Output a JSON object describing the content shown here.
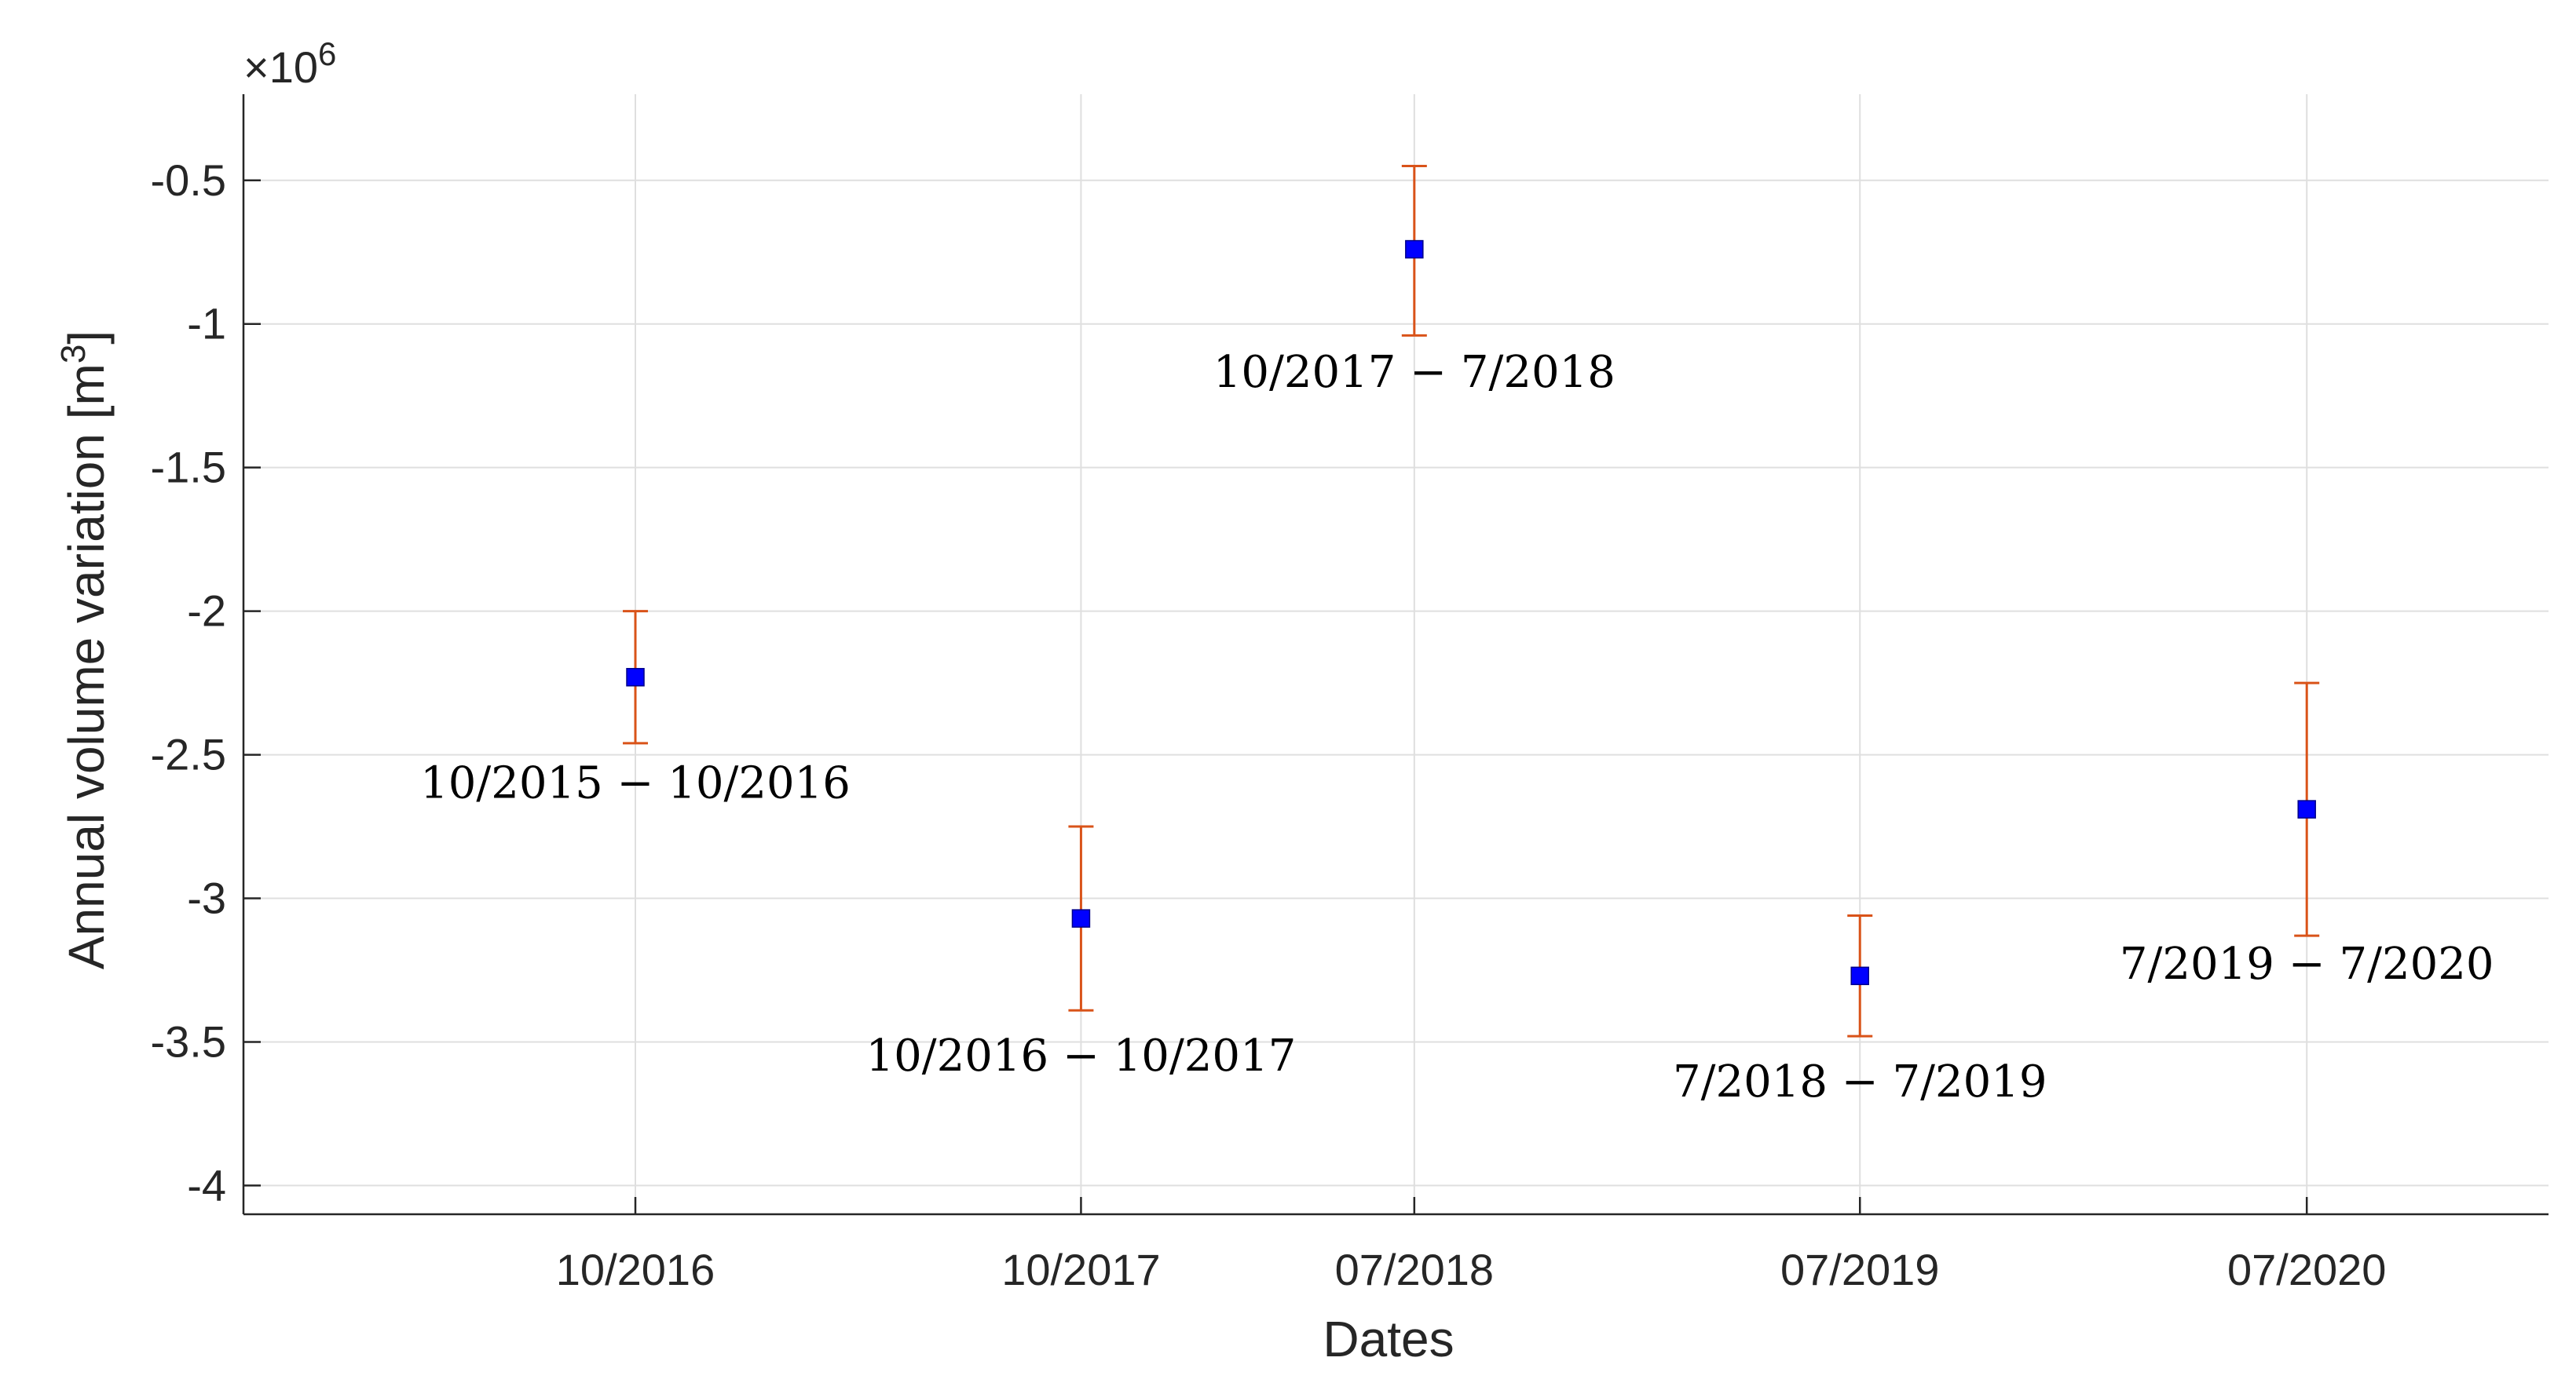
{
  "chart_data": {
    "type": "scatter",
    "xlabel": "Dates",
    "ylabel": "Annual volume variation [m",
    "ylabel_sup": "3",
    "ylabel_close": "]",
    "y_multiplier_prefix": "×10",
    "y_multiplier_exp": "6",
    "ylim": [
      -4.1,
      -0.2
    ],
    "yticks": [
      -4,
      -3.5,
      -3,
      -2.5,
      -2,
      -1.5,
      -1,
      -0.5
    ],
    "ytick_labels": [
      "-4",
      "-3.5",
      "-3",
      "-2.5",
      "-2",
      "-1.5",
      "-1",
      "-0.5"
    ],
    "xlim": [
      "2015-11-15",
      "2021-01-15"
    ],
    "xticks": [
      "2016-10-01",
      "2017-10-01",
      "2018-07-01",
      "2019-07-01",
      "2020-07-01"
    ],
    "xtick_labels": [
      "10/2016",
      "10/2017",
      "07/2018",
      "07/2019",
      "07/2020"
    ],
    "grid": true,
    "marker_color": "#0000ff",
    "errorbar_color": "#d95319",
    "points": [
      {
        "x": "2016-10-01",
        "y": -2.23,
        "err_low": -2.46,
        "err_high": -2.0,
        "annotation": "10/2015 − 10/2016"
      },
      {
        "x": "2017-10-01",
        "y": -3.07,
        "err_low": -3.39,
        "err_high": -2.75,
        "annotation": "10/2016 − 10/2017"
      },
      {
        "x": "2018-07-01",
        "y": -0.74,
        "err_low": -1.04,
        "err_high": -0.45,
        "annotation": "10/2017 − 7/2018"
      },
      {
        "x": "2019-07-01",
        "y": -3.27,
        "err_low": -3.48,
        "err_high": -3.06,
        "annotation": "7/2018 − 7/2019"
      },
      {
        "x": "2020-07-01",
        "y": -2.69,
        "err_low": -3.13,
        "err_high": -2.25,
        "annotation": "7/2019 − 7/2020"
      }
    ]
  }
}
